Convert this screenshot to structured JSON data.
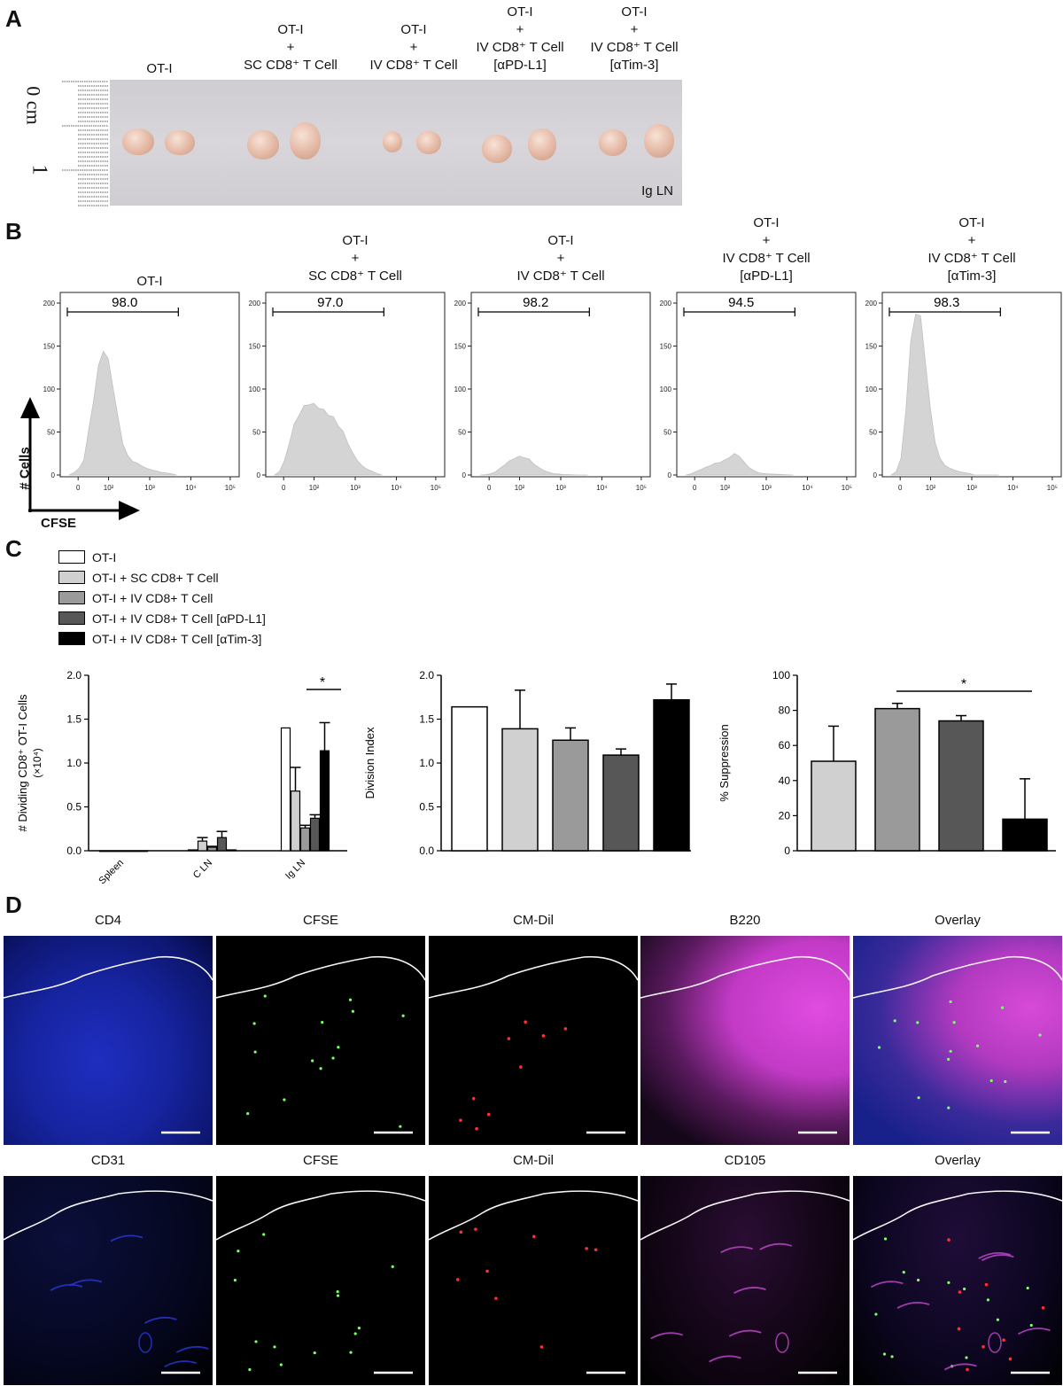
{
  "panels": {
    "a": {
      "letter": "A",
      "groups": [
        {
          "lines": [
            "OT-I"
          ]
        },
        {
          "lines": [
            "OT-I",
            "+",
            "SC CD8⁺ T Cell"
          ]
        },
        {
          "lines": [
            "OT-I",
            "+",
            "IV CD8⁺ T Cell"
          ]
        },
        {
          "lines": [
            "OT-I",
            "+",
            "IV CD8⁺ T Cell",
            "[αPD-L1]"
          ]
        },
        {
          "lines": [
            "OT-I",
            "+",
            "IV CD8⁺ T Cell",
            "[αTim-3]"
          ]
        }
      ],
      "ruler_zero": "0 cm",
      "ruler_one": "1",
      "photo_label": "Ig LN"
    },
    "b": {
      "letter": "B",
      "y_axis_label": "# Cells",
      "x_axis_label": "CFSE",
      "y_ticks": [
        "200",
        "150",
        "100",
        "50",
        "0"
      ],
      "x_ticks": [
        "0",
        "10²",
        "10³",
        "10⁴",
        "10⁵"
      ],
      "histograms": [
        {
          "title": [
            "OT-I"
          ],
          "gate": "98.0",
          "peak_count": 150
        },
        {
          "title": [
            "OT-I",
            "+",
            "SC CD8⁺ T Cell"
          ],
          "gate": "97.0",
          "peak_count": 85
        },
        {
          "title": [
            "OT-I",
            "+",
            "IV CD8⁺ T Cell"
          ],
          "gate": "98.2",
          "peak_count": 22
        },
        {
          "title": [
            "OT-I",
            "+",
            "IV CD8⁺ T Cell",
            "[αPD-L1]"
          ],
          "gate": "94.5",
          "peak_count": 25
        },
        {
          "title": [
            "OT-I",
            "+",
            "IV CD8⁺ T Cell",
            "[αTim-3]"
          ],
          "gate": "98.3",
          "peak_count": 195
        }
      ]
    },
    "c": {
      "letter": "C",
      "legend": [
        {
          "label": "OT-I",
          "color": "#ffffff"
        },
        {
          "label": "OT-I + SC CD8+ T Cell",
          "color": "#d0d0d0"
        },
        {
          "label": "OT-I + IV CD8+ T Cell",
          "color": "#9a9a9a"
        },
        {
          "label": "OT-I + IV CD8+ T Cell [αPD-L1]",
          "color": "#575757"
        },
        {
          "label": "OT-I + IV CD8+ T Cell [αTim-3]",
          "color": "#000000"
        }
      ]
    },
    "d": {
      "letter": "D",
      "row1_labels": [
        "CD4",
        "CFSE",
        "CM-Dil",
        "B220",
        "Overlay"
      ],
      "row2_labels": [
        "CD31",
        "CFSE",
        "CM-Dil",
        "CD105",
        "Overlay"
      ]
    }
  },
  "chart_data": [
    {
      "type": "bar",
      "ylabel": "# Dividing CD8⁺ OT-I Cells",
      "ylabel2": "(×10⁴)",
      "ylim": [
        0,
        2.0
      ],
      "yticks": [
        "0.0",
        "0.5",
        "1.0",
        "1.5",
        "2.0"
      ],
      "categories": [
        "Spleen",
        "C LN",
        "Ig LN"
      ],
      "series": [
        {
          "name": "OT-I",
          "values": [
            0.0,
            0.01,
            1.4
          ],
          "err": [
            0,
            0,
            0
          ]
        },
        {
          "name": "OT-I + SC CD8+ T Cell",
          "values": [
            0.0,
            0.11,
            0.68
          ],
          "err": [
            0,
            0.04,
            0.27
          ]
        },
        {
          "name": "OT-I + IV CD8+ T Cell",
          "values": [
            0.0,
            0.04,
            0.26
          ],
          "err": [
            0,
            0.01,
            0.03
          ]
        },
        {
          "name": "OT-I + IV CD8+ T Cell [αPD-L1]",
          "values": [
            0.0,
            0.15,
            0.37
          ],
          "err": [
            0,
            0.07,
            0.04
          ]
        },
        {
          "name": "OT-I + IV CD8+ T Cell [αTim-3]",
          "values": [
            0.0,
            0.01,
            1.14
          ],
          "err": [
            0,
            0,
            0.32
          ]
        }
      ],
      "annotation": "*"
    },
    {
      "type": "bar",
      "ylabel": "Division Index",
      "ylim": [
        0,
        2.0
      ],
      "yticks": [
        "0.0",
        "0.5",
        "1.0",
        "1.5",
        "2.0"
      ],
      "values": [
        1.64,
        1.39,
        1.26,
        1.09,
        1.72
      ],
      "err": [
        0,
        0.44,
        0.14,
        0.07,
        0.18
      ]
    },
    {
      "type": "bar",
      "ylabel": "% Suppression",
      "ylim": [
        0,
        100
      ],
      "yticks": [
        "0",
        "20",
        "40",
        "60",
        "80",
        "100"
      ],
      "values": [
        51,
        81,
        74,
        18
      ],
      "err": [
        20,
        3,
        3,
        23
      ],
      "annotation": "*"
    }
  ]
}
